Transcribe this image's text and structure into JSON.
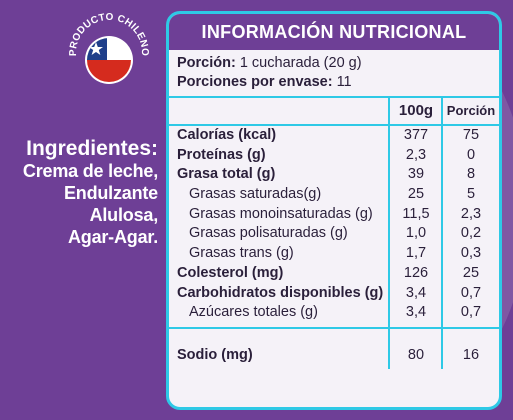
{
  "badge": {
    "text": "PRODUCTO CHILENO"
  },
  "ingredients": {
    "title": "Ingredientes:",
    "lines": [
      "Crema de leche,",
      "Endulzante",
      "Alulosa,",
      "Agar-Agar."
    ]
  },
  "nutrition": {
    "title": "INFORMACIÓN NUTRICIONAL",
    "portion_label": "Porción:",
    "portion_value": "1 cucharada (20 g)",
    "servings_label": "Porciones por envase:",
    "servings_value": "11",
    "col_100g": "100g",
    "col_portion": "Porción",
    "rows": [
      {
        "label": "Calorías (kcal)",
        "v100": "377",
        "vpor": "75"
      },
      {
        "label": "Proteínas (g)",
        "v100": "2,3",
        "vpor": "0"
      },
      {
        "label": "Grasa total (g)",
        "v100": "39",
        "vpor": "8"
      },
      {
        "label": "Grasas saturadas(g)",
        "v100": "25",
        "vpor": "5"
      },
      {
        "label": "Grasas monoinsaturadas (g)",
        "v100": "11,5",
        "vpor": "2,3"
      },
      {
        "label": "Grasas polisaturadas (g)",
        "v100": "1,0",
        "vpor": "0,2"
      },
      {
        "label": "Grasas trans (g)",
        "v100": "1,7",
        "vpor": "0,3"
      },
      {
        "label": "Colesterol (mg)",
        "v100": "126",
        "vpor": "25"
      },
      {
        "label": "Carbohidratos disponibles (g)",
        "v100": "3,4",
        "vpor": "0,7"
      },
      {
        "label": "Azúcares totales (g)",
        "v100": "3,4",
        "vpor": "0,7"
      }
    ],
    "sodio": {
      "label": "Sodio (mg)",
      "v100": "80",
      "vpor": "16"
    }
  },
  "colors": {
    "background": "#6e3f96",
    "accent": "#2ec9e6",
    "panel": "#f5f2f8"
  }
}
